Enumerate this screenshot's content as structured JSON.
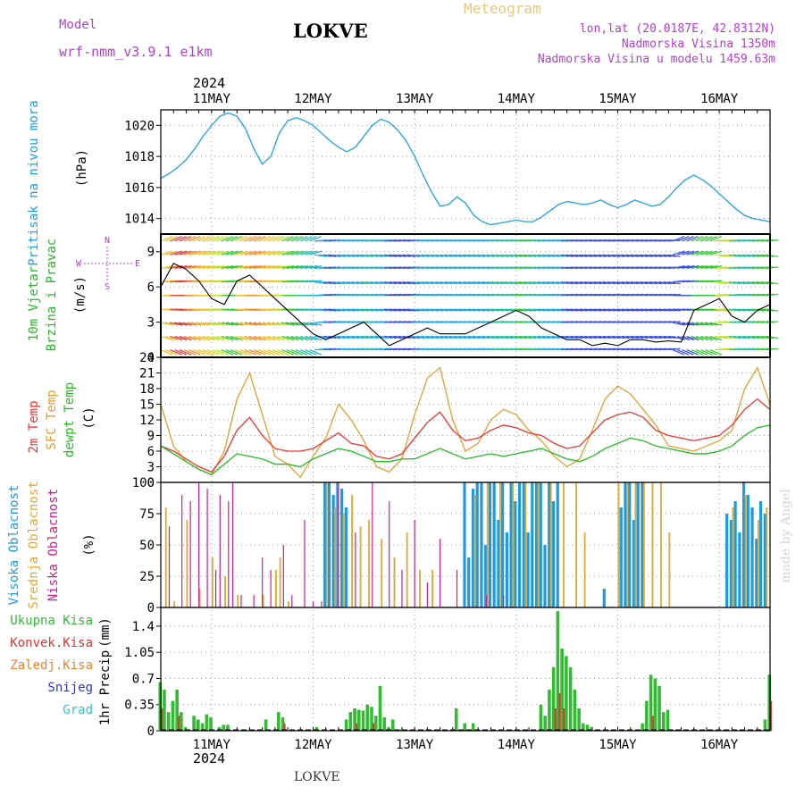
{
  "header": {
    "model_label": "Model",
    "model_name": "wrf-nmm_v3.9.1  e1km",
    "station_title": "LOKVE",
    "meteogram_label": "Meteogram",
    "lonlat": "lon,lat (20.0187E, 42.8312N)",
    "altitude": "Nadmorska Visina 1350m",
    "model_altitude": "Nadmorska Visina u modelu 1459.63m",
    "year": "2024",
    "bottom_station": "LOKVE",
    "watermark": "made by Angel"
  },
  "colors": {
    "pressure": "#1ea0e6",
    "temp2m": "#ee3333",
    "sfc_temp": "#e0a030",
    "dewpoint": "#22bb22",
    "cloud_high": "#1e9be0",
    "cloud_mid": "#e0a830",
    "cloud_low": "#cc1f8a",
    "precip_total": "#33bb33",
    "precip_conv": "#dd3333",
    "purple_label": "#b040d0"
  },
  "chart_data": [
    {
      "type": "line",
      "name": "pressure",
      "ylabel_lines": [
        "Pritisak na nivou mora",
        "(hPa)"
      ],
      "ylim": [
        1013,
        1021
      ],
      "yticks": [
        1014,
        1016,
        1018,
        1020
      ],
      "x_range_hours": [
        0,
        144
      ],
      "x": [
        0,
        2,
        4,
        6,
        8,
        10,
        12,
        14,
        16,
        18,
        20,
        22,
        24,
        26,
        28,
        30,
        32,
        34,
        36,
        38,
        40,
        42,
        44,
        46,
        48,
        50,
        52,
        54,
        56,
        58,
        60,
        62,
        64,
        66,
        68,
        70,
        72,
        74,
        76,
        78,
        80,
        82,
        84,
        86,
        88,
        90,
        92,
        94,
        96,
        98,
        100,
        102,
        104,
        106,
        108,
        110,
        112,
        114,
        116,
        118,
        120,
        122,
        124,
        126,
        128,
        130,
        132,
        134,
        136,
        138,
        140,
        142,
        144
      ],
      "series": [
        {
          "values": [
            1016.6,
            1016.9,
            1017.3,
            1017.8,
            1018.5,
            1019.3,
            1020.0,
            1020.6,
            1020.8,
            1020.6,
            1019.8,
            1018.5,
            1017.5,
            1018.0,
            1019.5,
            1020.3,
            1020.5,
            1020.3,
            1020.0,
            1019.5,
            1019.0,
            1018.6,
            1018.3,
            1018.6,
            1019.3,
            1020.0,
            1020.4,
            1020.2,
            1019.7,
            1019.0,
            1018.0,
            1016.8,
            1015.7,
            1014.8,
            1014.9,
            1015.4,
            1015.0,
            1014.2,
            1013.8,
            1013.6,
            1013.7,
            1013.8,
            1013.9,
            1013.8,
            1013.8,
            1014.1,
            1014.5,
            1014.9,
            1015.1,
            1015.0,
            1014.9,
            1015.0,
            1015.2,
            1014.9,
            1014.7,
            1014.9,
            1015.2,
            1015.0,
            1014.8,
            1014.9,
            1015.4,
            1016.0,
            1016.5,
            1016.8,
            1016.5,
            1016.1,
            1015.6,
            1015.1,
            1014.6,
            1014.2,
            1014.0,
            1013.9,
            1013.8
          ]
        }
      ]
    },
    {
      "type": "line",
      "name": "wind",
      "ylabel_lines": [
        "10m Vjetar",
        "Brzina i Pravac",
        "(m/s)"
      ],
      "compass": {
        "north": "N",
        "west": "W",
        "east": "E",
        "south": "S"
      },
      "ylim": [
        0,
        10.5
      ],
      "yticks": [
        0,
        3,
        6,
        9
      ],
      "x_range_hours": [
        0,
        144
      ],
      "x": [
        0,
        3,
        6,
        9,
        12,
        15,
        18,
        21,
        24,
        27,
        30,
        33,
        36,
        39,
        42,
        45,
        48,
        51,
        54,
        57,
        60,
        63,
        66,
        69,
        72,
        75,
        78,
        81,
        84,
        87,
        90,
        93,
        96,
        99,
        102,
        105,
        108,
        111,
        114,
        117,
        120,
        123,
        126,
        129,
        132,
        135,
        138,
        141,
        144
      ],
      "series": [
        {
          "name": "speed",
          "values": [
            6.0,
            8.0,
            7.5,
            6.5,
            5.0,
            4.5,
            6.5,
            7.0,
            6.0,
            5.0,
            4.0,
            3.0,
            2.0,
            1.5,
            2.0,
            2.5,
            3.0,
            2.0,
            1.0,
            1.5,
            2.0,
            2.5,
            2.0,
            2.0,
            2.0,
            2.5,
            3.0,
            3.5,
            4.0,
            3.5,
            2.5,
            2.0,
            1.5,
            1.5,
            1.0,
            1.2,
            1.0,
            1.5,
            1.5,
            1.3,
            1.4,
            1.3,
            4.0,
            4.5,
            5.0,
            3.5,
            3.0,
            4.0,
            4.5
          ]
        }
      ]
    },
    {
      "type": "line",
      "name": "temperature",
      "ylabel_lines": [
        "2m Temp",
        "SFC Temp",
        "dewpt Temp",
        "(C)"
      ],
      "ylim": [
        0,
        24
      ],
      "yticks": [
        0,
        3,
        6,
        9,
        12,
        15,
        18,
        21,
        24
      ],
      "x_range_hours": [
        0,
        144
      ],
      "x": [
        0,
        3,
        6,
        9,
        12,
        15,
        18,
        21,
        24,
        27,
        30,
        33,
        36,
        39,
        42,
        45,
        48,
        51,
        54,
        57,
        60,
        63,
        66,
        69,
        72,
        75,
        78,
        81,
        84,
        87,
        90,
        93,
        96,
        99,
        102,
        105,
        108,
        111,
        114,
        117,
        120,
        123,
        126,
        129,
        132,
        135,
        138,
        141,
        144
      ],
      "series": [
        {
          "name": "2m Temp",
          "values": [
            7.0,
            6.0,
            4.5,
            3.0,
            2.0,
            5.0,
            10.0,
            12.5,
            9.0,
            6.5,
            6.0,
            6.0,
            6.5,
            8.0,
            9.5,
            7.5,
            7.0,
            5.0,
            4.5,
            5.5,
            8.5,
            11.5,
            13.5,
            10.0,
            8.0,
            8.5,
            10.0,
            11.0,
            10.5,
            9.5,
            9.0,
            7.5,
            6.5,
            7.0,
            9.5,
            12.0,
            13.0,
            13.5,
            12.5,
            10.0,
            9.0,
            8.5,
            8.0,
            8.5,
            9.0,
            11.0,
            14.0,
            16.0,
            14.0
          ]
        },
        {
          "name": "SFC Temp",
          "values": [
            15.0,
            7.0,
            4.0,
            2.5,
            1.5,
            6.0,
            16.0,
            21.0,
            13.0,
            5.0,
            3.5,
            1.0,
            5.0,
            8.5,
            15.0,
            12.0,
            8.0,
            3.0,
            2.0,
            4.5,
            13.0,
            20.0,
            22.0,
            12.0,
            6.0,
            7.5,
            12.0,
            14.0,
            13.0,
            10.0,
            8.0,
            5.0,
            3.0,
            4.5,
            10.0,
            16.0,
            18.5,
            17.0,
            14.0,
            11.0,
            7.0,
            6.5,
            6.0,
            7.0,
            8.0,
            10.0,
            18.0,
            22.0,
            15.0
          ]
        },
        {
          "name": "dewpt Temp",
          "values": [
            7.0,
            5.5,
            4.0,
            2.5,
            1.5,
            3.5,
            5.5,
            5.0,
            4.5,
            3.5,
            3.5,
            3.0,
            4.5,
            5.5,
            6.5,
            6.0,
            5.0,
            4.0,
            4.0,
            4.5,
            4.5,
            5.5,
            6.5,
            5.5,
            4.5,
            5.0,
            5.5,
            5.0,
            5.5,
            6.0,
            6.5,
            5.5,
            4.5,
            4.0,
            5.0,
            6.5,
            7.5,
            8.5,
            8.0,
            7.0,
            6.5,
            6.0,
            5.5,
            5.5,
            6.0,
            7.0,
            9.0,
            10.5,
            11.0
          ]
        }
      ]
    },
    {
      "type": "bar",
      "name": "clouds",
      "ylabel_lines": [
        "Visoka Oblacnost",
        "Srednja Oblacnost",
        "Niska Oblacnost",
        "(%)"
      ],
      "ylim": [
        0,
        100
      ],
      "yticks": [
        0,
        25,
        50,
        75,
        100
      ],
      "x_range_hours": [
        0,
        144
      ],
      "series": [
        {
          "name": "Visoka Oblacnost",
          "x": [
            39,
            40,
            41,
            42,
            43,
            44,
            72,
            73,
            74,
            75,
            76,
            77,
            78,
            79,
            80,
            81,
            82,
            83,
            84,
            85,
            86,
            87,
            88,
            89,
            90,
            91,
            92,
            93,
            94,
            105,
            109,
            110,
            111,
            112,
            113,
            114,
            134,
            135,
            136,
            137,
            138,
            139,
            140,
            141,
            142,
            143
          ],
          "values": [
            100,
            100,
            90,
            100,
            95,
            80,
            100,
            40,
            95,
            100,
            100,
            50,
            100,
            100,
            70,
            100,
            60,
            100,
            85,
            100,
            100,
            60,
            100,
            100,
            100,
            50,
            100,
            85,
            100,
            15,
            80,
            100,
            100,
            70,
            100,
            100,
            75,
            70,
            85,
            60,
            100,
            90,
            80,
            55,
            85,
            75
          ]
        },
        {
          "name": "Srednja Oblacnost",
          "x": [
            1,
            3,
            6,
            9,
            12,
            15,
            18,
            24,
            27,
            28,
            30,
            39,
            41,
            43,
            45,
            47,
            49,
            52,
            55,
            58,
            61,
            64,
            74,
            77,
            80,
            83,
            86,
            89,
            92,
            95,
            98,
            100,
            108,
            110,
            112,
            114,
            116,
            118,
            120,
            135,
            138,
            141,
            143
          ],
          "values": [
            80,
            5,
            70,
            15,
            40,
            25,
            10,
            10,
            30,
            40,
            5,
            100,
            80,
            75,
            90,
            65,
            70,
            55,
            40,
            60,
            30,
            30,
            90,
            100,
            100,
            100,
            100,
            100,
            100,
            100,
            100,
            60,
            100,
            100,
            100,
            100,
            100,
            100,
            60,
            80,
            90,
            70,
            80
          ]
        },
        {
          "name": "Niska Oblacnost",
          "x": [
            2,
            5,
            7,
            9,
            11,
            13,
            14,
            16,
            17,
            19,
            22,
            24,
            26,
            29,
            31,
            34,
            36,
            38,
            42,
            46,
            50,
            54,
            57,
            60,
            63,
            66,
            70,
            77,
            81
          ],
          "values": [
            65,
            90,
            85,
            100,
            95,
            30,
            90,
            85,
            100,
            10,
            10,
            40,
            30,
            50,
            10,
            70,
            5,
            5,
            100,
            60,
            100,
            85,
            30,
            70,
            20,
            55,
            30,
            10,
            10
          ]
        }
      ]
    },
    {
      "type": "bar",
      "name": "precipitation",
      "ylabel_lines": [
        "1hr Precip",
        "(mm)"
      ],
      "legend": [
        "Ukupna Kisa",
        "Konvek.Kisa",
        "Zaledj.Kisa",
        "Snijeg",
        "Grad"
      ],
      "ylim": [
        0,
        1.65
      ],
      "yticks": [
        0,
        0.35,
        0.7,
        1.05,
        1.4
      ],
      "ytick_labels": [
        "0",
        "0.35",
        "0.7",
        "1.05",
        "1.4"
      ],
      "x_range_hours": [
        0,
        144
      ],
      "series": [
        {
          "name": "Ukupna Kisa",
          "x": [
            0,
            1,
            2,
            3,
            4,
            5,
            6,
            8,
            9,
            10,
            11,
            12,
            14,
            15,
            16,
            25,
            28,
            29,
            37,
            44,
            45,
            46,
            47,
            48,
            49,
            50,
            51,
            52,
            53,
            54,
            55,
            57,
            70,
            72,
            74,
            90,
            91,
            92,
            93,
            94,
            95,
            96,
            97,
            98,
            99,
            100,
            101,
            102,
            114,
            115,
            116,
            117,
            118,
            119,
            120,
            121,
            143,
            144
          ],
          "values": [
            0.65,
            0.55,
            0.25,
            0.4,
            0.55,
            0.25,
            0.05,
            0.2,
            0.15,
            0.1,
            0.22,
            0.18,
            0.05,
            0.08,
            0.08,
            0.15,
            0.25,
            0.18,
            0.05,
            0.15,
            0.25,
            0.3,
            0.28,
            0.27,
            0.35,
            0.32,
            0.2,
            0.6,
            0.18,
            0.05,
            0.15,
            0.02,
            0.3,
            0.1,
            0.1,
            0.35,
            0.2,
            0.55,
            0.85,
            1.6,
            1.1,
            1.0,
            0.85,
            0.55,
            0.3,
            0.1,
            0.08,
            0.05,
            0.1,
            0.4,
            0.75,
            0.7,
            0.6,
            0.25,
            0.28,
            0.02,
            0.15,
            0.75
          ]
        },
        {
          "name": "Konvek.Kisa",
          "x": [
            0,
            4,
            29,
            46,
            50,
            93,
            94,
            95,
            116,
            144
          ],
          "values": [
            0.3,
            0.2,
            0.1,
            0.1,
            0.1,
            0.3,
            0.5,
            0.3,
            0.2,
            0.4
          ]
        }
      ]
    }
  ],
  "x_axis": {
    "day_labels": [
      "11MAY",
      "12MAY",
      "13MAY",
      "14MAY",
      "15MAY",
      "16MAY"
    ],
    "day_hours": [
      12,
      36,
      60,
      84,
      108,
      132
    ]
  }
}
